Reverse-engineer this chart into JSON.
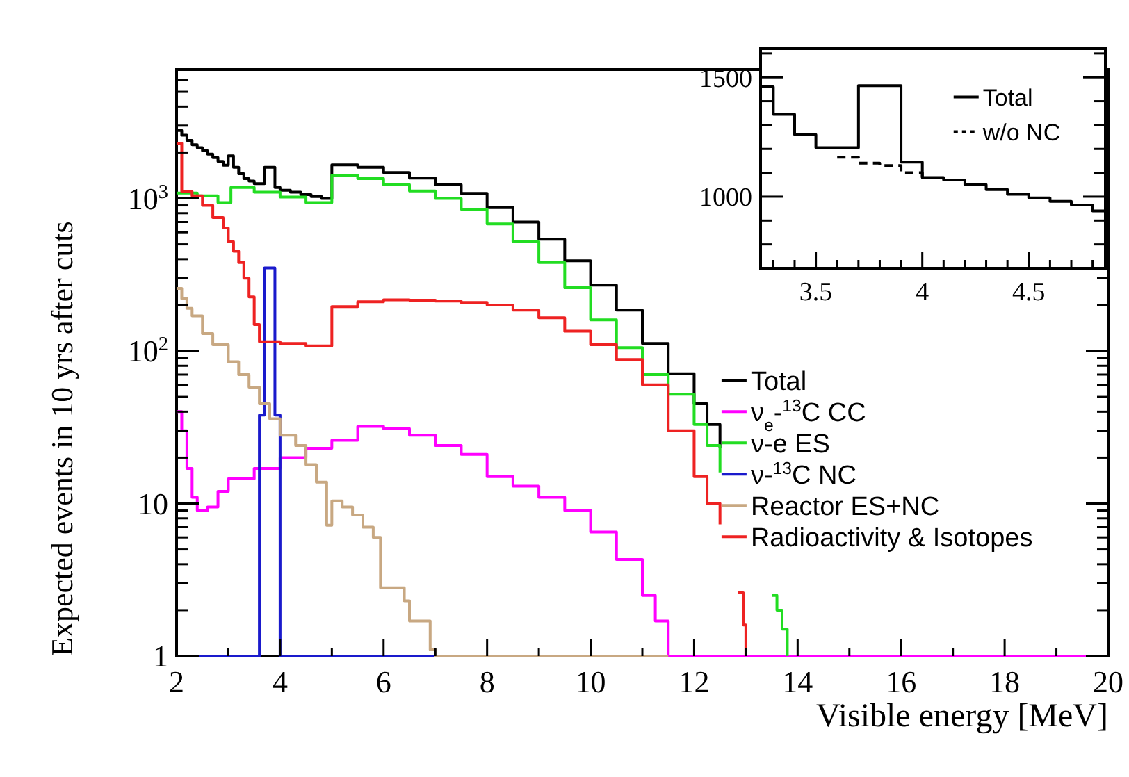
{
  "chart_data": [
    {
      "type": "step",
      "xlabel": "Visible energy [MeV]",
      "ylabel": "Expected events in 10 yrs after cuts",
      "log": true,
      "legend": "right",
      "xlim": [
        2,
        20
      ],
      "xticks": [
        2,
        {
          "value": 3,
          "label": null
        },
        4,
        {
          "value": 5,
          "label": null
        },
        6,
        {
          "value": 7,
          "label": null
        },
        8,
        {
          "value": 9,
          "label": null
        },
        10,
        {
          "value": 11,
          "label": null
        },
        12,
        {
          "value": 13,
          "label": null
        },
        14,
        {
          "value": 15,
          "label": null
        },
        16,
        {
          "value": 17,
          "label": null
        },
        18,
        {
          "value": 19,
          "label": null
        },
        20
      ],
      "ylim": [
        1,
        7000
      ],
      "yticks": [
        1,
        {
          "value": 2,
          "label": null
        },
        {
          "value": 3,
          "label": null
        },
        {
          "value": 4,
          "label": null
        },
        {
          "value": 5,
          "label": null
        },
        {
          "value": 6,
          "label": null
        },
        {
          "value": 7,
          "label": null
        },
        {
          "value": 8,
          "label": null
        },
        {
          "value": 9,
          "label": null
        },
        10,
        {
          "value": 20,
          "label": null
        },
        {
          "value": 30,
          "label": null
        },
        {
          "value": 40,
          "label": null
        },
        {
          "value": 50,
          "label": null
        },
        {
          "value": 60,
          "label": null
        },
        {
          "value": 70,
          "label": null
        },
        {
          "value": 80,
          "label": null
        },
        {
          "value": 90,
          "label": null
        },
        {
          "value": 100,
          "label": "10$^{2}$"
        },
        {
          "value": 200,
          "label": null
        },
        {
          "value": 300,
          "label": null
        },
        {
          "value": 400,
          "label": null
        },
        {
          "value": 500,
          "label": null
        },
        {
          "value": 600,
          "label": null
        },
        {
          "value": 700,
          "label": null
        },
        {
          "value": 800,
          "label": null
        },
        {
          "value": 900,
          "label": null
        },
        {
          "value": 1000,
          "label": "10$^{3}$"
        },
        {
          "value": 2000,
          "label": null
        },
        {
          "value": 3000,
          "label": null
        },
        {
          "value": 4000,
          "label": null
        },
        {
          "value": 5000,
          "label": null
        },
        {
          "value": 6000,
          "label": null
        }
      ],
      "series": [
        {
          "name": "Total",
          "color": "#000000",
          "x": [
            2,
            2.1,
            2.2,
            2.3,
            2.4,
            2.5,
            2.6,
            2.7,
            2.8,
            2.9,
            3.0,
            3.1,
            3.2,
            3.3,
            3.4,
            3.5,
            3.7,
            3.9,
            4.0,
            4.2,
            4.4,
            4.6,
            4.8,
            5.0,
            5.5,
            6,
            6.5,
            7,
            7.5,
            8,
            8.5,
            9,
            9.5,
            10,
            10.5,
            11,
            11.5,
            12,
            12.25,
            12.5
          ],
          "values": [
            2790,
            2600,
            2400,
            2250,
            2150,
            2050,
            1950,
            1850,
            1750,
            1650,
            1900,
            1600,
            1450,
            1350,
            1300,
            1250,
            1600,
            1180,
            1130,
            1100,
            1060,
            1030,
            1000,
            1660,
            1600,
            1480,
            1360,
            1230,
            1080,
            870,
            700,
            540,
            390,
            270,
            185,
            112,
            71,
            45,
            33,
            23
          ]
        },
        {
          "name": "ν$_{e}$-$^{13}$C CC",
          "color": "#ff00ff",
          "x": [
            2,
            2.1,
            2.2,
            2.3,
            2.4,
            2.6,
            2.8,
            3.0,
            3.5,
            4,
            4.5,
            5,
            5.5,
            6,
            6.5,
            7,
            7.5,
            8,
            8.5,
            9,
            9.5,
            10,
            10.5,
            11,
            11.25,
            11.5,
            20
          ],
          "values": [
            40,
            30,
            17,
            11,
            9,
            9.5,
            12,
            14.5,
            17,
            20,
            23,
            26,
            32,
            31,
            28,
            24,
            21,
            15,
            13,
            11,
            9,
            6.5,
            4.3,
            2.5,
            1.7,
            1,
            1
          ]
        },
        {
          "name": "ν-e ES",
          "color": "#22dd22",
          "x": [
            2,
            2.4,
            2.8,
            3.05,
            3.5,
            4,
            4.5,
            5,
            5.5,
            6,
            6.5,
            7,
            7.5,
            8,
            8.5,
            9,
            9.5,
            10,
            10.5,
            11,
            11.5,
            12,
            12.25,
            12.5,
            12.6,
            13.5,
            13.6,
            13.7,
            13.8
          ],
          "values": [
            1085,
            1040,
            940,
            1180,
            1100,
            1020,
            940,
            1420,
            1350,
            1230,
            1120,
            1000,
            850,
            680,
            520,
            380,
            260,
            160,
            105,
            70,
            52,
            33,
            24,
            16,
            null,
            2.5,
            2.0,
            1.5,
            1
          ]
        },
        {
          "name": "ν-$^{13}$C NC",
          "color": "#1a1acc",
          "x": [
            2,
            3.6,
            3.7,
            3.9,
            4.0,
            7
          ],
          "values": [
            1,
            38,
            350,
            38,
            1,
            1
          ]
        },
        {
          "name": "Reactor ES+NC",
          "color": "#c8a882",
          "x": [
            2,
            2.1,
            2.2,
            2.3,
            2.5,
            2.7,
            3.0,
            3.2,
            3.4,
            3.6,
            3.8,
            4.0,
            4.3,
            4.5,
            4.7,
            4.9,
            5.0,
            5.2,
            5.4,
            5.6,
            5.8,
            5.94,
            6.2,
            6.4,
            6.5,
            6.6,
            6.9,
            7.0,
            11.5
          ],
          "values": [
            257,
            220,
            190,
            170,
            130,
            110,
            85,
            70,
            58,
            45,
            36,
            28,
            24,
            18,
            13.8,
            7.2,
            10.4,
            9.5,
            8.4,
            7,
            6,
            2.8,
            2.8,
            2.3,
            1.7,
            1.7,
            1.1,
            1,
            1
          ]
        },
        {
          "name": "Radioactivity & Isotopes",
          "color": "#ee2222",
          "x": [
            2,
            2.1,
            2.3,
            2.5,
            2.7,
            2.9,
            3.0,
            3.1,
            3.2,
            3.3,
            3.4,
            3.5,
            3.6,
            4,
            4.5,
            5,
            5.5,
            6,
            6.5,
            7,
            7.5,
            8,
            8.5,
            9,
            9.5,
            10,
            10.5,
            11,
            11.5,
            12,
            12.25,
            12.5,
            12.6,
            12.85,
            12.95,
            13.0
          ],
          "values": [
            2300,
            1110,
            1040,
            900,
            750,
            640,
            520,
            450,
            380,
            300,
            226,
            149,
            115,
            112,
            108,
            195,
            210,
            216,
            215,
            212,
            208,
            200,
            185,
            165,
            135,
            110,
            88,
            60,
            30,
            15,
            10,
            7.3,
            null,
            2.6,
            1.6,
            1
          ]
        }
      ]
    },
    {
      "type": "step",
      "legend": "top right",
      "xlim": [
        3.24,
        4.86
      ],
      "xticks": [
        {
          "value": 3.3,
          "label": null
        },
        {
          "value": 3.4,
          "label": null
        },
        3.5,
        {
          "value": 3.6,
          "label": null
        },
        {
          "value": 3.7,
          "label": null
        },
        {
          "value": 3.8,
          "label": null
        },
        {
          "value": 3.9,
          "label": null
        },
        4,
        {
          "value": 4.1,
          "label": null
        },
        {
          "value": 4.2,
          "label": null
        },
        {
          "value": 4.3,
          "label": null
        },
        {
          "value": 4.4,
          "label": null
        },
        4.5,
        {
          "value": 4.6,
          "label": null
        },
        {
          "value": 4.7,
          "label": null
        },
        {
          "value": 4.8,
          "label": null
        }
      ],
      "ylim": [
        700,
        1620
      ],
      "yticks": [
        {
          "value": 800,
          "label": null
        },
        {
          "value": 900,
          "label": null
        },
        1000,
        {
          "value": 1100,
          "label": null
        },
        {
          "value": 1200,
          "label": null
        },
        {
          "value": 1300,
          "label": null
        },
        {
          "value": 1400,
          "label": null
        },
        1500,
        {
          "value": 1600,
          "label": null
        }
      ],
      "series": [
        {
          "name": "Total",
          "color": "#000000",
          "x": [
            3.24,
            3.3,
            3.4,
            3.5,
            3.7,
            3.9,
            4.0,
            4.1,
            4.2,
            4.3,
            4.4,
            4.5,
            4.6,
            4.7,
            4.8,
            4.86
          ],
          "values": [
            1460,
            1345,
            1260,
            1205,
            1465,
            1145,
            1080,
            1070,
            1050,
            1030,
            1010,
            995,
            980,
            965,
            940,
            940
          ]
        },
        {
          "name": "w/o NC",
          "color": "#000000",
          "line_style": "dashed",
          "x": [
            3.6,
            3.7,
            3.8,
            3.9,
            4.0
          ],
          "values": [
            1165,
            1140,
            1130,
            1100,
            1080
          ]
        }
      ]
    }
  ]
}
